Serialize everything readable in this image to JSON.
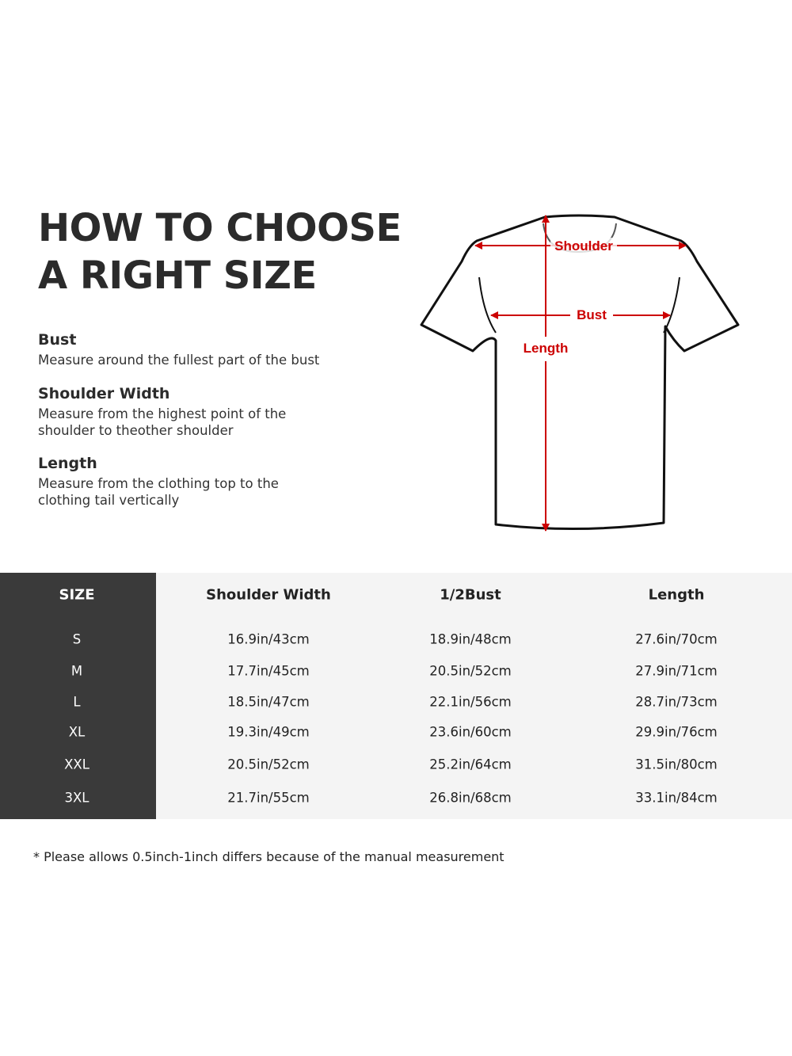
{
  "title_lines": [
    "HOW TO CHOOSE",
    "A RIGHT SIZE"
  ],
  "definitions": [
    {
      "term": "Bust",
      "text": "Measure around the fullest part of the bust"
    },
    {
      "term": "Shoulder Width",
      "text": "Measure from the highest point of the shoulder to theother shoulder"
    },
    {
      "term": "Length",
      "text": "Measure from the clothing top to the clothing tail vertically"
    }
  ],
  "diagram": {
    "labels": {
      "shoulder": "Shoulder",
      "bust": "Bust",
      "length": "Length"
    },
    "arrow_color": "#cc0000"
  },
  "table": {
    "headers": [
      "SIZE",
      "Shoulder Width",
      "1/2Bust",
      "Length"
    ],
    "rows": [
      [
        "S",
        "16.9in/43cm",
        "18.9in/48cm",
        "27.6in/70cm"
      ],
      [
        "M",
        "17.7in/45cm",
        "20.5in/52cm",
        "27.9in/71cm"
      ],
      [
        "L",
        "18.5in/47cm",
        "22.1in/56cm",
        "28.7in/73cm"
      ],
      [
        "XL",
        "19.3in/49cm",
        "23.6in/60cm",
        "29.9in/76cm"
      ],
      [
        "XXL",
        "20.5in/52cm",
        "25.2in/64cm",
        "31.5in/80cm"
      ],
      [
        "3XL",
        "21.7in/55cm",
        "26.8in/68cm",
        "33.1in/84cm"
      ]
    ]
  },
  "note": "* Please allows 0.5inch-1inch differs because of the  manual measurement"
}
